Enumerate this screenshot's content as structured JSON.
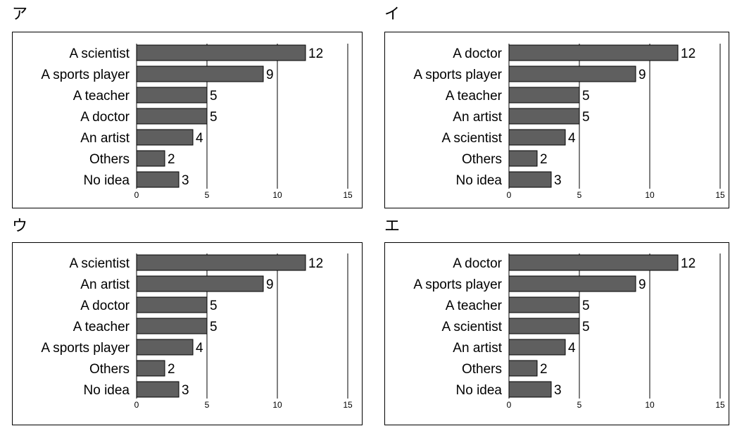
{
  "chart_data": [
    {
      "type": "bar",
      "orientation": "horizontal",
      "panel_label": "ア",
      "categories": [
        "A scientist",
        "A sports player",
        "A teacher",
        "A doctor",
        "An artist",
        "Others",
        "No idea"
      ],
      "values": [
        12,
        9,
        5,
        5,
        4,
        2,
        3
      ],
      "xticks": [
        0,
        5,
        10,
        15
      ],
      "xlim": [
        0,
        15
      ],
      "grid": true,
      "bar_color": "#5f5f5f"
    },
    {
      "type": "bar",
      "orientation": "horizontal",
      "panel_label": "イ",
      "categories": [
        "A doctor",
        "A sports player",
        "A teacher",
        "An artist",
        "A scientist",
        "Others",
        "No idea"
      ],
      "values": [
        12,
        9,
        5,
        5,
        4,
        2,
        3
      ],
      "xticks": [
        0,
        5,
        10,
        15
      ],
      "xlim": [
        0,
        15
      ],
      "grid": true,
      "bar_color": "#5f5f5f"
    },
    {
      "type": "bar",
      "orientation": "horizontal",
      "panel_label": "ウ",
      "categories": [
        "A scientist",
        "An artist",
        "A doctor",
        "A teacher",
        "A sports player",
        "Others",
        "No idea"
      ],
      "values": [
        12,
        9,
        5,
        5,
        4,
        2,
        3
      ],
      "xticks": [
        0,
        5,
        10,
        15
      ],
      "xlim": [
        0,
        15
      ],
      "grid": true,
      "bar_color": "#5f5f5f"
    },
    {
      "type": "bar",
      "orientation": "horizontal",
      "panel_label": "エ",
      "categories": [
        "A doctor",
        "A sports player",
        "A teacher",
        "A scientist",
        "An artist",
        "Others",
        "No idea"
      ],
      "values": [
        12,
        9,
        5,
        5,
        4,
        2,
        3
      ],
      "xticks": [
        0,
        5,
        10,
        15
      ],
      "xlim": [
        0,
        15
      ],
      "grid": true,
      "bar_color": "#5f5f5f"
    }
  ]
}
